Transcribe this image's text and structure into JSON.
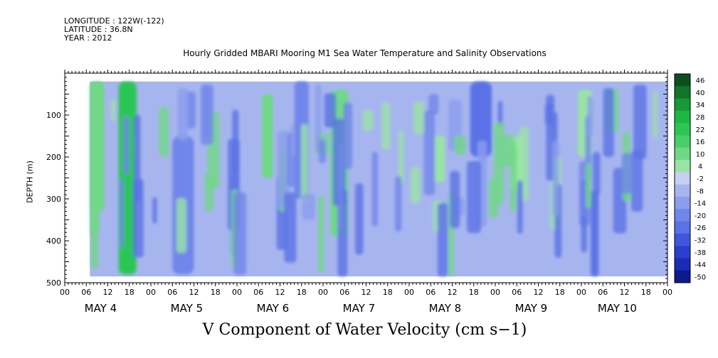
{
  "header": {
    "longitude": "LONGITUDE : 122W(-122)",
    "latitude": "LATITUDE : 36.8N",
    "year": "YEAR : 2012"
  },
  "chart_data": {
    "type": "heatmap",
    "title": "Hourly Gridded MBARI Mooring M1 Sea Water Temperature and Salinity Observations",
    "variable_label": "V Component of Water Velocity (cm s−1)",
    "ylabel": "DEPTH (m)",
    "y_range": [
      0,
      500
    ],
    "y_inverted": true,
    "y_ticks": [
      100,
      200,
      300,
      400,
      500
    ],
    "x_range_hours": [
      0,
      168
    ],
    "x_hour_tick_labels": [
      "00",
      "06",
      "12",
      "18",
      "00",
      "06",
      "12",
      "18",
      "00",
      "06",
      "12",
      "18",
      "00",
      "06",
      "12",
      "18",
      "00",
      "06",
      "12",
      "18",
      "00",
      "06",
      "12",
      "18",
      "00",
      "06",
      "12",
      "18",
      "00"
    ],
    "day_labels": [
      "MAY  4",
      "MAY  5",
      "MAY  6",
      "MAY  7",
      "MAY  8",
      "MAY  9",
      "MAY 10"
    ],
    "colorbar": {
      "labels": [
        "46",
        "40",
        "34",
        "28",
        "22",
        "16",
        "10",
        "4",
        "-2",
        "-8",
        "-14",
        "-20",
        "-26",
        "-32",
        "-38",
        "-44",
        "-50"
      ],
      "colors": [
        "#0b4f1e",
        "#12742a",
        "#169a37",
        "#1cb846",
        "#2cc655",
        "#49cf6a",
        "#6fd886",
        "#9ae3a7",
        "#c7cff2",
        "#a7b5ef",
        "#8b9ded",
        "#7186ea",
        "#5a72e5",
        "#3f58db",
        "#2a3fcf",
        "#1a2bb6",
        "#0b1a8c"
      ]
    },
    "data_extent_hours": [
      7,
      168
    ],
    "data_extent_depth_m": [
      20,
      485
    ],
    "features": [
      {
        "name": "strong positive band",
        "x_hours": [
          15,
          20
        ],
        "depth_m": [
          20,
          480
        ],
        "value_cm_s": 22
      },
      {
        "name": "positive band",
        "x_hours": [
          7,
          11
        ],
        "depth_m": [
          20,
          330
        ],
        "value_cm_s": 10
      },
      {
        "name": "positive band",
        "x_hours": [
          55,
          58
        ],
        "depth_m": [
          50,
          250
        ],
        "value_cm_s": 8
      },
      {
        "name": "positive band",
        "x_hours": [
          74,
          79
        ],
        "depth_m": [
          40,
          390
        ],
        "value_cm_s": 8
      },
      {
        "name": "positive patch",
        "x_hours": [
          103,
          106
        ],
        "depth_m": [
          150,
          260
        ],
        "value_cm_s": 6
      },
      {
        "name": "positive patch",
        "x_hours": [
          124,
          128
        ],
        "depth_m": [
          150,
          280
        ],
        "value_cm_s": 6
      },
      {
        "name": "positive patch",
        "x_hours": [
          143,
          147
        ],
        "depth_m": [
          40,
          200
        ],
        "value_cm_s": 6
      },
      {
        "name": "negative core",
        "x_hours": [
          30,
          36
        ],
        "depth_m": [
          150,
          480
        ],
        "value_cm_s": -22
      },
      {
        "name": "negative core",
        "x_hours": [
          113,
          119
        ],
        "depth_m": [
          20,
          200
        ],
        "value_cm_s": -24
      },
      {
        "name": "negative core",
        "x_hours": [
          64,
          68
        ],
        "depth_m": [
          20,
          300
        ],
        "value_cm_s": -20
      }
    ],
    "background_value_cm_s": -10,
    "grid": false
  }
}
